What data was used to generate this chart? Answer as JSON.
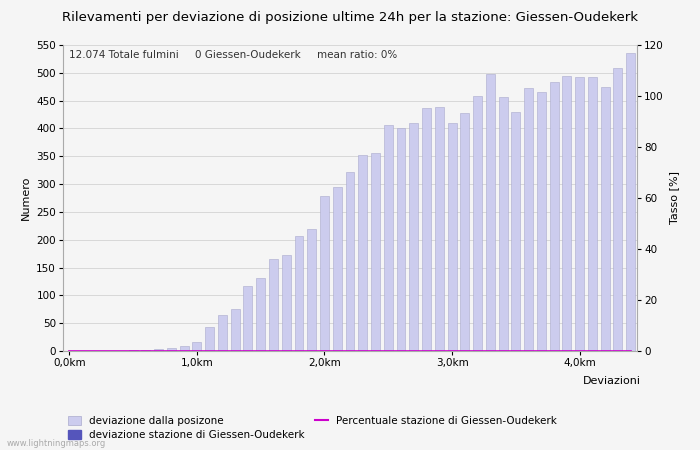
{
  "title": "Rilevamenti per deviazione di posizione ultime 24h per la stazione: Giessen-Oudekerk",
  "subtitle": "12.074 Totale fulmini     0 Giessen-Oudekerk     mean ratio: 0%",
  "xlabel": "Deviazioni",
  "ylabel_left": "Numero",
  "ylabel_right": "Tasso [%]",
  "bar_values": [
    0,
    0,
    0,
    0,
    0,
    1,
    2,
    3,
    5,
    9,
    16,
    43,
    65,
    75,
    116,
    131,
    166,
    172,
    207,
    220,
    279,
    295,
    321,
    352,
    355,
    406,
    400,
    409,
    437,
    438,
    409,
    427,
    458,
    497,
    456,
    430,
    472,
    466,
    484,
    494,
    492,
    493,
    475,
    509,
    535
  ],
  "bar_color": "#ccccee",
  "bar_edge_color": "#aaaacc",
  "station_bar_color": "#5555bb",
  "station_bar_values": [
    0,
    0,
    0,
    0,
    0,
    0,
    0,
    0,
    0,
    0,
    0,
    0,
    0,
    0,
    0,
    0,
    0,
    0,
    0,
    0,
    0,
    0,
    0,
    0,
    0,
    0,
    0,
    0,
    0,
    0,
    0,
    0,
    0,
    0,
    0,
    0,
    0,
    0,
    0,
    0,
    0,
    0,
    0,
    0,
    0
  ],
  "ratio_values": [
    0,
    0,
    0,
    0,
    0,
    0,
    0,
    0,
    0,
    0,
    0,
    0,
    0,
    0,
    0,
    0,
    0,
    0,
    0,
    0,
    0,
    0,
    0,
    0,
    0,
    0,
    0,
    0,
    0,
    0,
    0,
    0,
    0,
    0,
    0,
    0,
    0,
    0,
    0,
    0,
    0,
    0,
    0,
    0,
    0
  ],
  "ratio_color": "#cc00cc",
  "n_bars": 45,
  "ylim_left": [
    0,
    550
  ],
  "ylim_right": [
    0,
    120
  ],
  "yticks_left": [
    0,
    50,
    100,
    150,
    200,
    250,
    300,
    350,
    400,
    450,
    500,
    550
  ],
  "yticks_right": [
    0,
    20,
    40,
    60,
    80,
    100,
    120
  ],
  "xtick_positions": [
    0,
    10,
    20,
    30,
    40
  ],
  "xtick_labels": [
    "0,0km",
    "1,0km",
    "2,0km",
    "3,0km",
    "4,0km"
  ],
  "background_color": "#f5f5f5",
  "plot_bg_color": "#f5f5f5",
  "grid_color": "#cccccc",
  "legend_labels": [
    "deviazione dalla posizone",
    "deviazione stazione di Giessen-Oudekerk",
    "Percentuale stazione di Giessen-Oudekerk"
  ],
  "watermark": "www.lightningmaps.org",
  "title_fontsize": 9.5,
  "label_fontsize": 8,
  "tick_fontsize": 7.5,
  "subtitle_fontsize": 7.5,
  "legend_fontsize": 7.5
}
